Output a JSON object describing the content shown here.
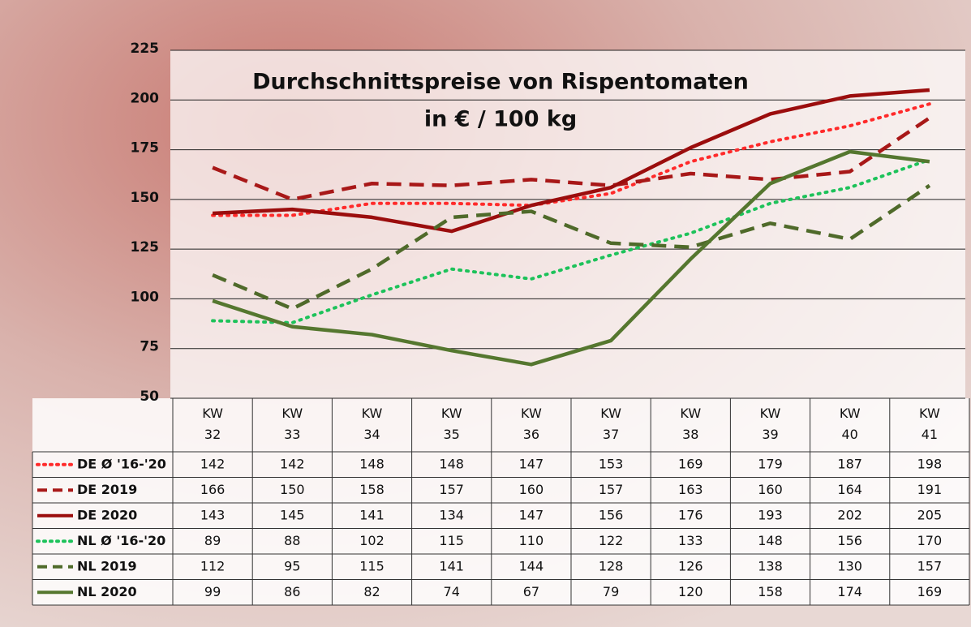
{
  "chart_data": {
    "type": "line",
    "title": "Durchschnittspreise von Rispentomaten",
    "subtitle": "in € / 100 kg",
    "categories": [
      "KW 32",
      "KW 33",
      "KW 34",
      "KW 35",
      "KW 36",
      "KW 37",
      "KW 38",
      "KW 39",
      "KW 40",
      "KW 41"
    ],
    "series": [
      {
        "name": "DE Ø '16-'20",
        "color": "#ff2a2a",
        "dash": "dotted",
        "values": [
          142,
          142,
          148,
          148,
          147,
          153,
          169,
          179,
          187,
          198
        ]
      },
      {
        "name": "DE 2019",
        "color": "#a81818",
        "dash": "dashed",
        "values": [
          166,
          150,
          158,
          157,
          160,
          157,
          163,
          160,
          164,
          191
        ]
      },
      {
        "name": "DE 2020",
        "color": "#9b0d0d",
        "dash": "solid",
        "values": [
          143,
          145,
          141,
          134,
          147,
          156,
          176,
          193,
          202,
          205
        ]
      },
      {
        "name": "NL Ø '16-'20",
        "color": "#1dc25a",
        "dash": "dotted",
        "values": [
          89,
          88,
          102,
          115,
          110,
          122,
          133,
          148,
          156,
          170
        ]
      },
      {
        "name": "NL 2019",
        "color": "#4f6a2a",
        "dash": "dashed",
        "values": [
          112,
          95,
          115,
          141,
          144,
          128,
          126,
          138,
          130,
          157
        ]
      },
      {
        "name": "NL 2020",
        "color": "#55772f",
        "dash": "solid",
        "values": [
          99,
          86,
          82,
          74,
          67,
          79,
          120,
          158,
          174,
          169
        ]
      }
    ],
    "ylim": [
      50,
      225
    ],
    "yticks": [
      50,
      75,
      100,
      125,
      150,
      175,
      200,
      225
    ],
    "grid": true
  }
}
